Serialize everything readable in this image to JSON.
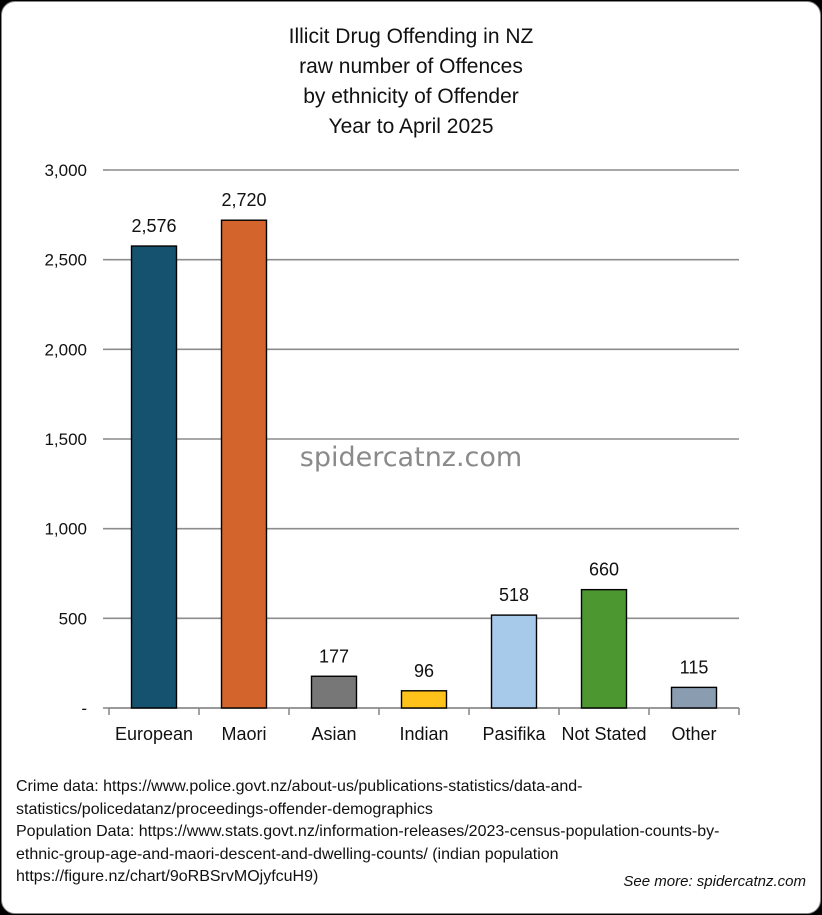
{
  "title_lines": [
    "Illicit Drug Offending in NZ",
    "raw number of Offences",
    "by ethnicity of Offender",
    "Year to April 2025"
  ],
  "watermark": "spidercatnz.com",
  "footer_lines": [
    "Crime data: https://www.police.govt.nz/about-us/publications-statistics/data-and-",
    "statistics/policedatanz/proceedings-offender-demographics",
    "Population Data: https://www.stats.govt.nz/information-releases/2023-census-population-counts-by-",
    "ethnic-group-age-and-maori-descent-and-dwelling-counts/ (indian population",
    "https://figure.nz/chart/9oRBSrvMOjyfcuH9)"
  ],
  "see_more": "See more: spidercatnz.com",
  "chart_data": {
    "type": "bar",
    "title": "Illicit Drug Offending in NZ raw number of Offences by ethnicity of Offender Year to April 2025",
    "xlabel": "",
    "ylabel": "",
    "categories": [
      "European",
      "Maori",
      "Asian",
      "Indian",
      "Pasifika",
      "Not Stated",
      "Other"
    ],
    "values": [
      2576,
      2720,
      177,
      96,
      518,
      660,
      115
    ],
    "value_labels": [
      "2,576",
      "2,720",
      "177",
      "96",
      "518",
      "660",
      "115"
    ],
    "colors": [
      "#15526f",
      "#d2642c",
      "#777777",
      "#ffc21a",
      "#a7c9ea",
      "#4c972f",
      "#8a9cb0"
    ],
    "ylim": [
      0,
      3000
    ],
    "yticks": [
      0,
      500,
      1000,
      1500,
      2000,
      2500,
      3000
    ],
    "ytick_labels": [
      "-",
      "500",
      "1,000",
      "1,500",
      "2,000",
      "2,500",
      "3,000"
    ],
    "grid": true,
    "legend": "none"
  }
}
